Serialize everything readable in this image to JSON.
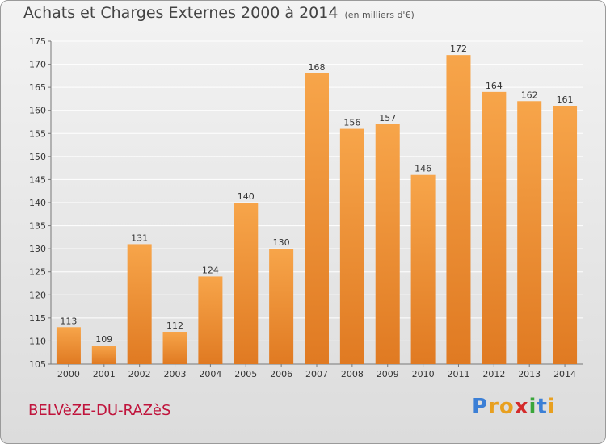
{
  "header": {
    "title": "Achats et Charges Externes 2000 à 2014",
    "subtitle": "(en milliers d'€)"
  },
  "footer": {
    "commune": "BELVèZE-DU-RAZèS"
  },
  "logo": {
    "text": "Proxiti",
    "letters": [
      {
        "char": "P",
        "color": "#3b7fd6"
      },
      {
        "char": "r",
        "color": "#e8a020"
      },
      {
        "char": "o",
        "color": "#e8a020"
      },
      {
        "char": "x",
        "color": "#d42b2b"
      },
      {
        "char": "i",
        "color": "#3aa63a"
      },
      {
        "char": "t",
        "color": "#3b7fd6"
      },
      {
        "char": "i",
        "color": "#e8a020"
      }
    ]
  },
  "colors": {
    "bar_light": "#f7a54a",
    "bar_dark": "#e07a22",
    "grid": "#ffffff",
    "axis_text": "#333333",
    "label_text": "#333333"
  },
  "chart_data": {
    "type": "bar",
    "categories": [
      "2000",
      "2001",
      "2002",
      "2003",
      "2004",
      "2005",
      "2006",
      "2007",
      "2008",
      "2009",
      "2010",
      "2011",
      "2012",
      "2013",
      "2014"
    ],
    "values": [
      113,
      109,
      131,
      112,
      124,
      140,
      130,
      168,
      156,
      157,
      146,
      172,
      164,
      162,
      161
    ],
    "title": "Achats et Charges Externes 2000 à 2014",
    "ylim": [
      105,
      175
    ],
    "yticks": [
      105,
      110,
      115,
      120,
      125,
      130,
      135,
      140,
      145,
      150,
      155,
      160,
      165,
      170,
      175
    ],
    "grid": true
  }
}
